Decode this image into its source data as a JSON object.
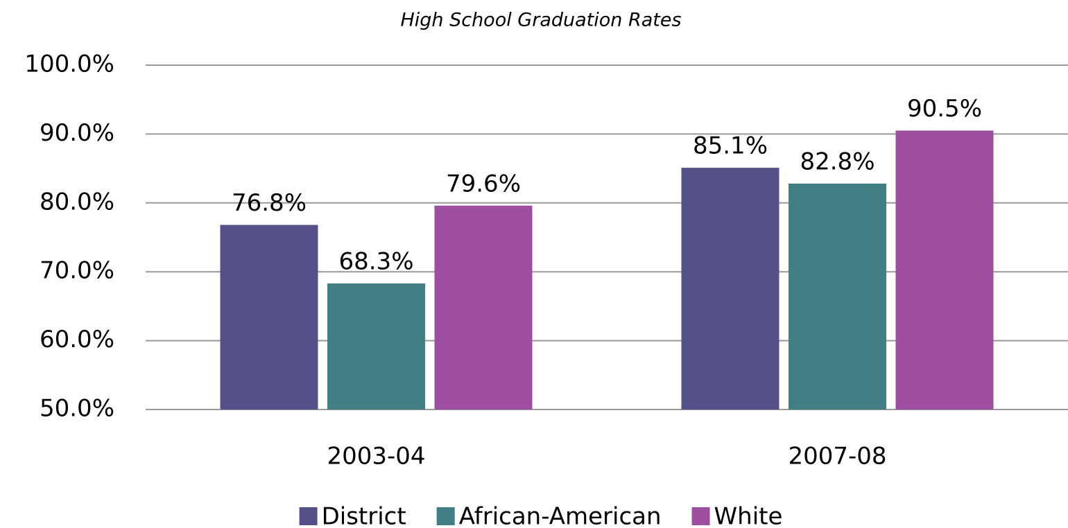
{
  "chart_data": {
    "type": "bar",
    "title": "High School Graduation Rates",
    "categories": [
      "2003-04",
      "2007-08"
    ],
    "series": [
      {
        "name": "District",
        "color": "#545189",
        "values": [
          76.8,
          85.1
        ],
        "value_labels": [
          "76.8%",
          "85.1%"
        ]
      },
      {
        "name": "African-American",
        "color": "#427f84",
        "values": [
          68.3,
          82.8
        ],
        "value_labels": [
          "68.3%",
          "82.8%"
        ]
      },
      {
        "name": "White",
        "color": "#9e4fa0",
        "values": [
          79.6,
          90.5
        ],
        "value_labels": [
          "79.6%",
          "90.5%"
        ]
      }
    ],
    "ylim": [
      50,
      100
    ],
    "yticks": [
      {
        "value": 50,
        "label": "50.0%"
      },
      {
        "value": 60,
        "label": "60.0%"
      },
      {
        "value": 70,
        "label": "70.0%"
      },
      {
        "value": 80,
        "label": "80.0%"
      },
      {
        "value": 90,
        "label": "90.0%"
      },
      {
        "value": 100,
        "label": "100.0%"
      }
    ],
    "grid": true,
    "legend": "bottom"
  }
}
